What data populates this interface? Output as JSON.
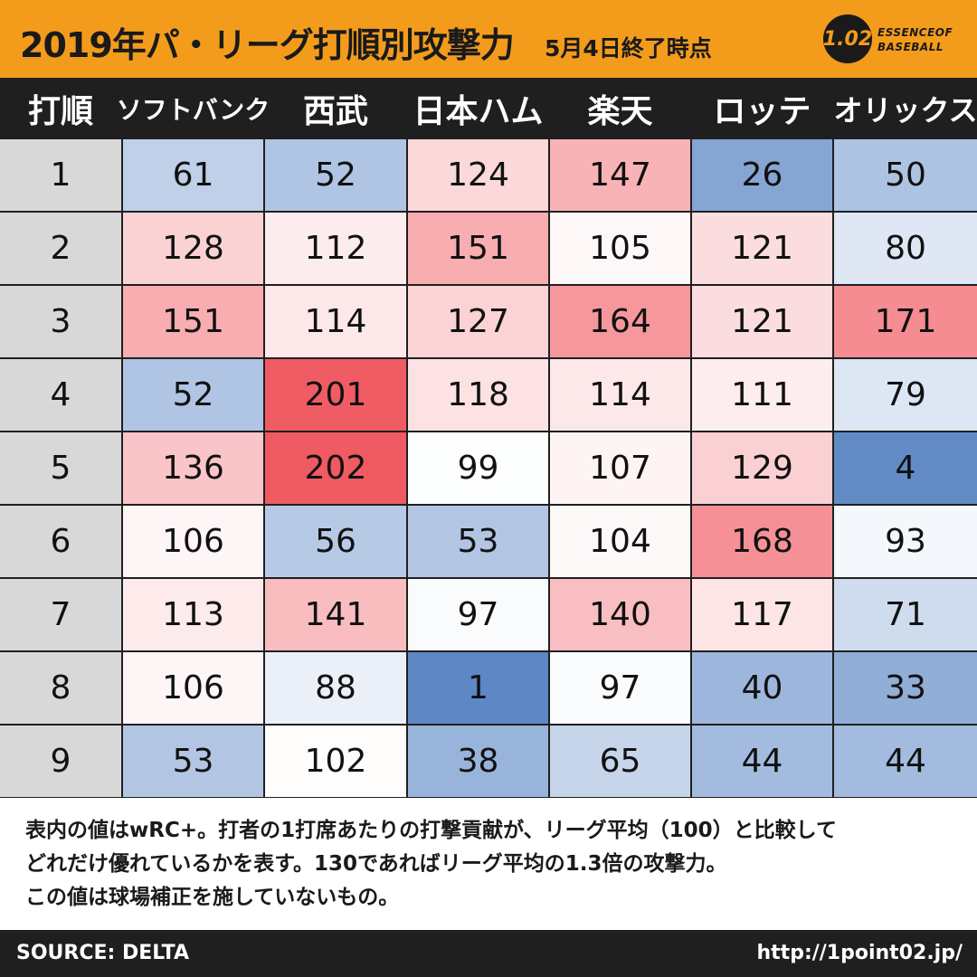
{
  "header": {
    "title": "2019年パ・リーグ打順別攻撃力",
    "subtitle": "5月4日終了時点",
    "logo_mark": "1.02",
    "logo_line1": "ESSENCEOF",
    "logo_line2": "BASEBALL"
  },
  "chart_data": {
    "type": "heatmap",
    "title": "2019年パ・リーグ打順別攻撃力",
    "subtitle": "5月4日終了時点",
    "metric": "wRC+",
    "row_header": "打順",
    "rows": [
      "1",
      "2",
      "3",
      "4",
      "5",
      "6",
      "7",
      "8",
      "9"
    ],
    "columns": [
      "ソフトバンク",
      "西武",
      "日本ハム",
      "楽天",
      "ロッテ",
      "オリックス"
    ],
    "values": [
      [
        61,
        52,
        124,
        147,
        26,
        50
      ],
      [
        128,
        112,
        151,
        105,
        121,
        80
      ],
      [
        151,
        114,
        127,
        164,
        121,
        171
      ],
      [
        52,
        201,
        118,
        114,
        111,
        79
      ],
      [
        136,
        202,
        99,
        107,
        129,
        4
      ],
      [
        106,
        56,
        53,
        104,
        168,
        93
      ],
      [
        113,
        141,
        97,
        140,
        117,
        71
      ],
      [
        106,
        88,
        1,
        97,
        40,
        33
      ],
      [
        53,
        102,
        38,
        65,
        44,
        44
      ]
    ],
    "center_value": 100,
    "colors": {
      "low": "#5b86c4",
      "mid": "#ffffff",
      "high": "#f05a62"
    }
  },
  "note": {
    "line1": "表内の値はwRC+。打者の1打席あたりの打撃貢献が、リーグ平均（100）と比較して",
    "line2": "どれだけ優れているかを表す。130であればリーグ平均の1.3倍の攻撃力。",
    "line3": "この値は球場補正を施していないもの。"
  },
  "footer": {
    "source": "SOURCE: DELTA",
    "url": "http://1point02.jp/"
  }
}
